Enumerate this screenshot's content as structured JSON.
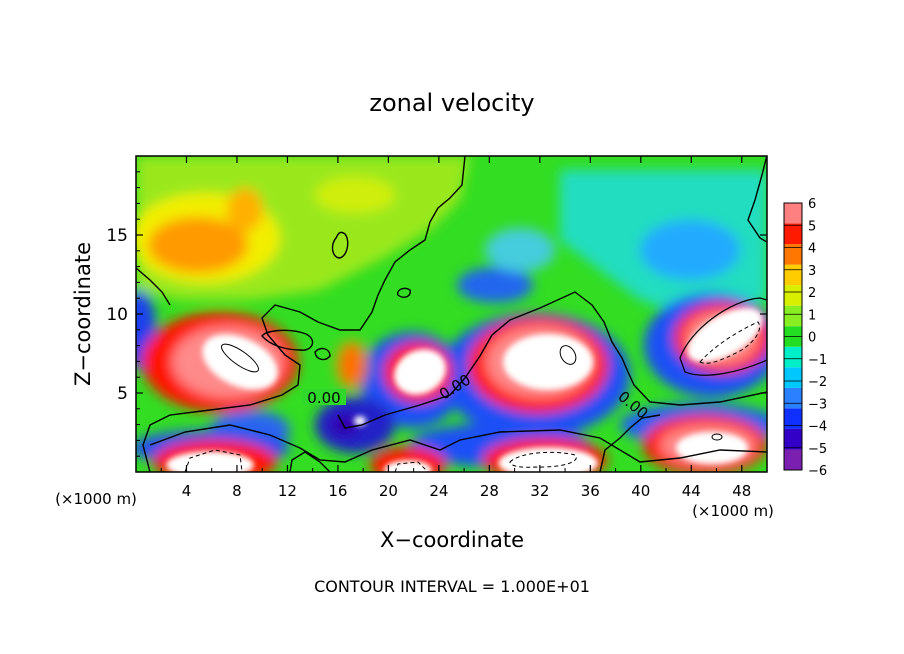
{
  "chart_data": {
    "type": "heatmap",
    "title": "zonal velocity",
    "xlabel": "X−coordinate",
    "ylabel": "Z−coordinate",
    "xlim": [
      0,
      50
    ],
    "ylim": [
      0,
      20
    ],
    "x_multiplier_left": "(×1000 m)",
    "x_multiplier_right": "(×1000 m)",
    "x_ticks": [
      "4",
      "8",
      "12",
      "16",
      "20",
      "24",
      "28",
      "32",
      "36",
      "40",
      "44",
      "48"
    ],
    "y_ticks": [
      "5",
      "10",
      "15"
    ],
    "footer": "CONTOUR INTERVAL = 1.000E+01",
    "contour_labels": [
      "0.00",
      "0.00",
      "0.00"
    ],
    "colorbar": {
      "min": -6,
      "max": 6,
      "ticks": [
        "6",
        "5",
        "4",
        "3",
        "2",
        "1",
        "0",
        "−1",
        "−2",
        "−3",
        "−4",
        "−5",
        "−6"
      ],
      "colors": [
        "#7a1fb0",
        "#3300c8",
        "#1030ff",
        "#2a80ff",
        "#00c8ff",
        "#00eec8",
        "#22dd22",
        "#88ee22",
        "#d8f000",
        "#ffcc00",
        "#ff7700",
        "#ff1a00",
        "#ff8080"
      ]
    },
    "features": [
      {
        "name": "positive-core-left",
        "x": 8,
        "z": 8,
        "value": "> 6"
      },
      {
        "name": "positive-core-center",
        "x": 31,
        "z": 7,
        "value": "> 6"
      },
      {
        "name": "positive-core-right",
        "x": 45,
        "z": 8.5,
        "value": "> 6"
      },
      {
        "name": "positive-core-small",
        "x": 21,
        "z": 7,
        "value": "> 6"
      },
      {
        "name": "positive-core-bottom-left",
        "x": 6,
        "z": 1,
        "value": "> 6"
      },
      {
        "name": "positive-core-bottom-mid",
        "x": 20,
        "z": 1,
        "value": "> 6"
      },
      {
        "name": "positive-core-bottom-right",
        "x": 32,
        "z": 1,
        "value": "> 6"
      },
      {
        "name": "positive-core-far-right",
        "x": 45,
        "z": 2,
        "value": "> 6"
      },
      {
        "name": "orange-patch-upper-left",
        "x": 5,
        "z": 15,
        "value": 3
      }
    ]
  }
}
